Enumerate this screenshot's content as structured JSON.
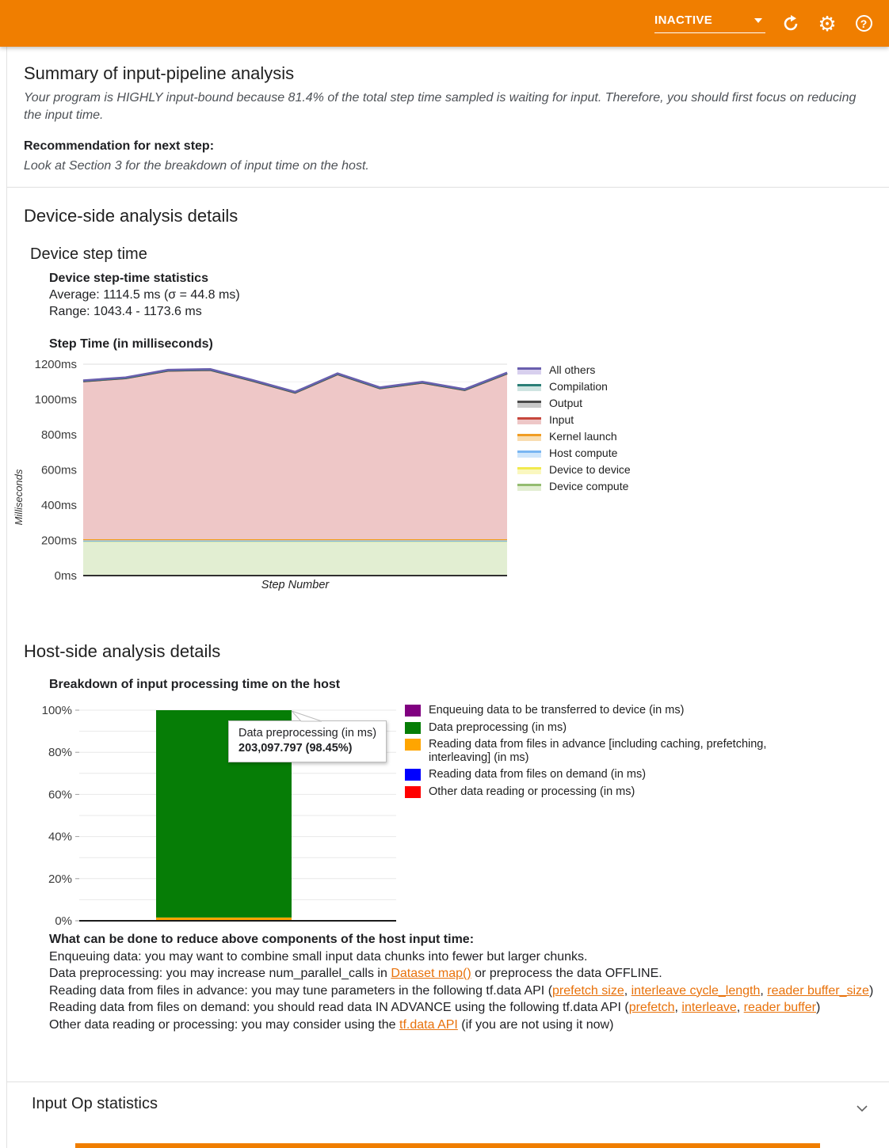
{
  "header": {
    "status_label": "INACTIVE",
    "accent_color": "#F07E00",
    "help_glyph": "?"
  },
  "summary": {
    "title": "Summary of input-pipeline analysis",
    "body": "Your program is HIGHLY input-bound because 81.4% of the total step time sampled is waiting for input. Therefore, you should first focus on reducing the input time.",
    "recommendation_label": "Recommendation for next step:",
    "recommendation": "Look at Section 3 for the breakdown of input time on the host."
  },
  "device_side": {
    "title": "Device-side analysis details",
    "subtitle": "Device step time",
    "stats_title": "Device step-time statistics",
    "average": "Average: 1114.5 ms (σ = 44.8 ms)",
    "range": "Range: 1043.4 - 1173.6 ms",
    "chart_title": "Step Time (in milliseconds)"
  },
  "host_side": {
    "title": "Host-side analysis details",
    "chart_title": "Breakdown of input processing time on the host",
    "tooltip": {
      "title": "Data preprocessing (in ms)",
      "value": "203,097.797 (98.45%)"
    },
    "advice_title": "What can be done to reduce above components of the host input time:",
    "advice_lines": [
      [
        {
          "t": "Enqueuing data: you may want to combine small input data chunks into fewer but larger chunks."
        }
      ],
      [
        {
          "t": "Data preprocessing: you may increase num_parallel_calls in "
        },
        {
          "t": "Dataset map()",
          "link": true
        },
        {
          "t": " or preprocess the data OFFLINE."
        }
      ],
      [
        {
          "t": "Reading data from files in advance: you may tune parameters in the following tf.data API ("
        },
        {
          "t": "prefetch size",
          "link": true
        },
        {
          "t": ", "
        },
        {
          "t": "interleave cycle_length",
          "link": true
        },
        {
          "t": ", "
        },
        {
          "t": "reader buffer_size",
          "link": true
        },
        {
          "t": ")"
        }
      ],
      [
        {
          "t": "Reading data from files on demand: you should read data IN ADVANCE using the following tf.data API ("
        },
        {
          "t": "prefetch",
          "link": true
        },
        {
          "t": ", "
        },
        {
          "t": "interleave",
          "link": true
        },
        {
          "t": ", "
        },
        {
          "t": "reader buffer",
          "link": true
        },
        {
          "t": ")"
        }
      ],
      [
        {
          "t": "Other data reading or processing: you may consider using the "
        },
        {
          "t": "tf.data API",
          "link": true
        },
        {
          "t": " (if you are not using it now)"
        }
      ]
    ]
  },
  "input_op": {
    "title": "Input Op statistics"
  },
  "chart_data": [
    {
      "type": "area",
      "title": "Step Time (in milliseconds)",
      "xlabel": "Step Number",
      "ylabel": "Milliseconds",
      "ylim": [
        0,
        1200
      ],
      "yticks": [
        0,
        200,
        400,
        600,
        800,
        1000,
        1200
      ],
      "ytick_suffix": "ms",
      "grid": true,
      "legend_position": "right",
      "note": "series listed bottom-to-top of stack; legend displays reverse order",
      "series": [
        {
          "name": "Device compute",
          "line": "#94bc70",
          "fill": "#e2eed2",
          "values": [
            197,
            197,
            197,
            197,
            197,
            197,
            197,
            197,
            197,
            197,
            197
          ]
        },
        {
          "name": "Device to device",
          "line": "#f2ea4e",
          "fill": "#faf7bf",
          "values": [
            1,
            1,
            1,
            1,
            1,
            1,
            1,
            1,
            1,
            1,
            1
          ]
        },
        {
          "name": "Host compute",
          "line": "#79b6f2",
          "fill": "#cfe6fb",
          "values": [
            1,
            1,
            1,
            1,
            1,
            1,
            1,
            1,
            1,
            1,
            1
          ]
        },
        {
          "name": "Kernel launch",
          "line": "#f09d24",
          "fill": "#f9ddb0",
          "values": [
            8,
            8,
            8,
            8,
            8,
            8,
            8,
            8,
            8,
            8,
            8
          ]
        },
        {
          "name": "Input",
          "line": "#c7473d",
          "fill": "#eec7c7",
          "values": [
            896,
            913,
            956,
            960,
            898,
            831,
            936,
            856,
            888,
            846,
            940
          ]
        },
        {
          "name": "Output",
          "line": "#4a4a4a",
          "fill": "#c9c9c9",
          "values": [
            0.5,
            0.5,
            0.5,
            0.5,
            0.5,
            0.5,
            0.5,
            0.5,
            0.5,
            0.5,
            0.5
          ]
        },
        {
          "name": "Compilation",
          "line": "#2c7f77",
          "fill": "#cfe4e1",
          "values": [
            2,
            2,
            2,
            2,
            2,
            2,
            2,
            2,
            2,
            2,
            2
          ]
        },
        {
          "name": "All others",
          "line": "#6a5fae",
          "fill": "#d8d0ee",
          "values": [
            2.5,
            2.5,
            2.5,
            2.5,
            2.5,
            2.5,
            2.5,
            2.5,
            2.5,
            2.5,
            2.5
          ]
        }
      ],
      "totals_ms": [
        1108,
        1125,
        1168,
        1172,
        1110,
        1043,
        1148,
        1068,
        1100,
        1058,
        1152
      ]
    },
    {
      "type": "stacked-bar-percent",
      "title": "Breakdown of input processing time on the host",
      "yticks": [
        0,
        20,
        40,
        60,
        80,
        100
      ],
      "ytick_suffix": "%",
      "series": [
        {
          "name": "Enqueuing data to be transferred to device (in ms)",
          "color": "#800080",
          "pct": 0.0
        },
        {
          "name": "Data preprocessing (in ms)",
          "color": "#067d06",
          "pct": 98.45,
          "value_ms": "203,097.797"
        },
        {
          "name": "Reading data from files in advance [including caching, prefetching, interleaving] (in ms)",
          "color": "#FFA500",
          "pct": 1.45
        },
        {
          "name": "Reading data from files on demand (in ms)",
          "color": "#0000FF",
          "pct": 0.07
        },
        {
          "name": "Other data reading or processing (in ms)",
          "color": "#FF0000",
          "pct": 0.03
        }
      ],
      "stack_order_bottom_to_top": [
        4,
        3,
        2,
        1,
        0
      ]
    }
  ]
}
